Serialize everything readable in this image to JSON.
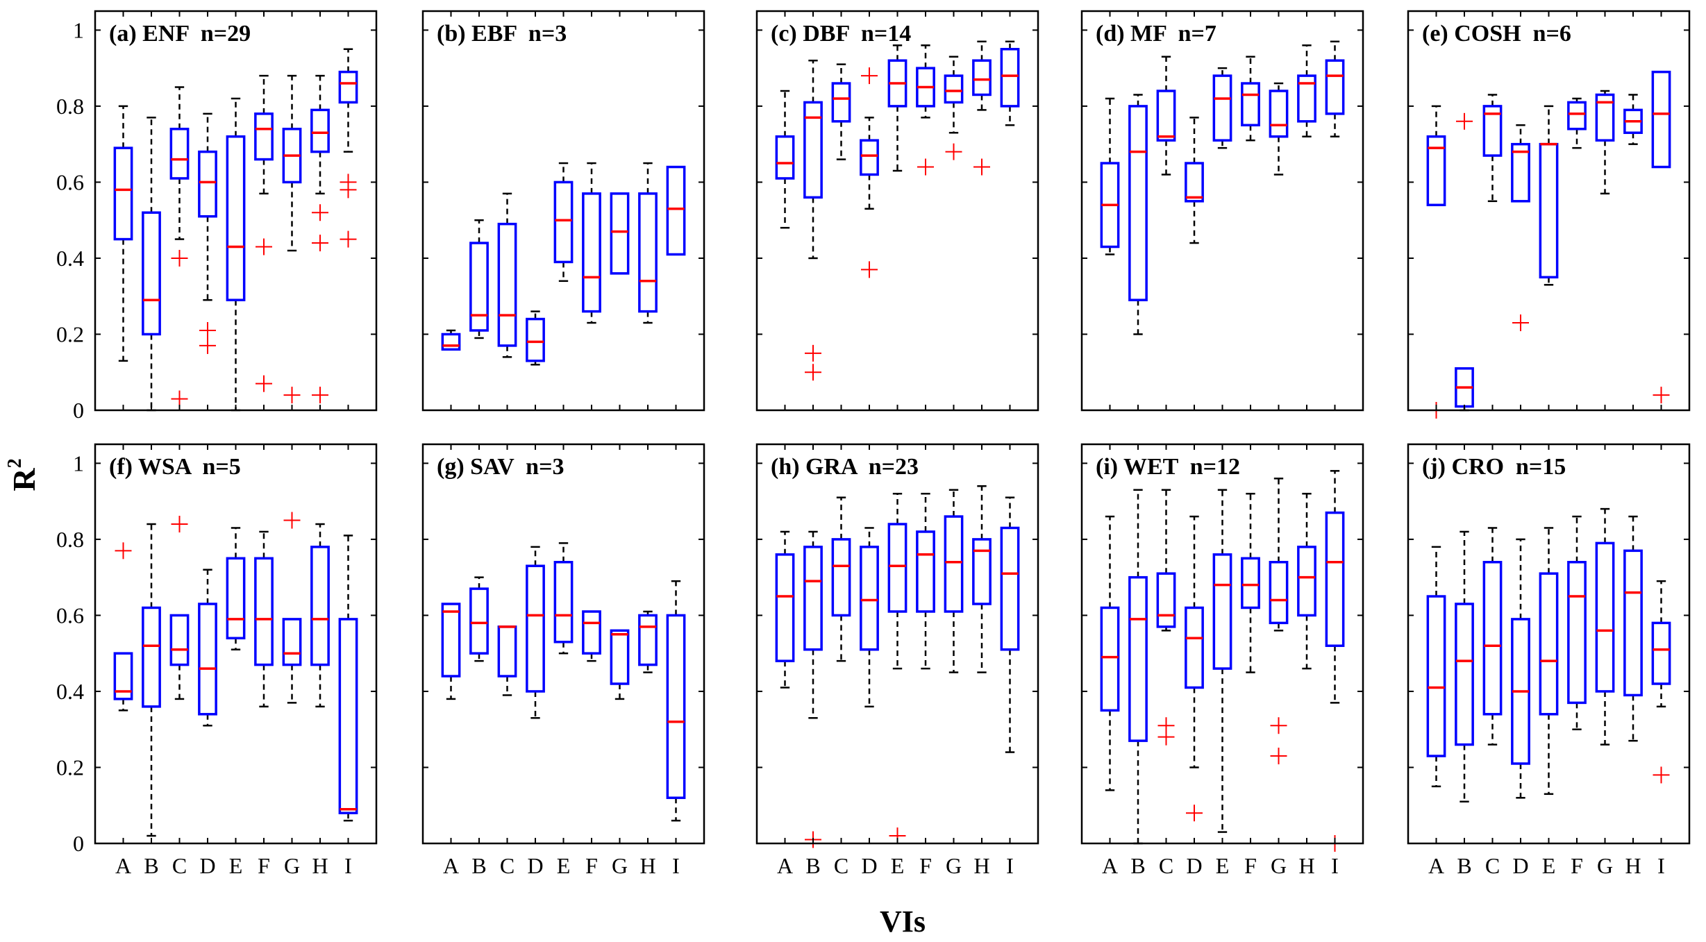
{
  "figure": {
    "ylabel": "R",
    "ylabel_sup": "2",
    "xlabel": "VIs"
  },
  "chart_data": {
    "type": "box",
    "categories": [
      "A",
      "B",
      "C",
      "D",
      "E",
      "F",
      "G",
      "H",
      "I"
    ],
    "ylim": [
      0,
      1.05
    ],
    "yticks": [
      0,
      0.2,
      0.4,
      0.6,
      0.8,
      1
    ],
    "ytick_labels": [
      "0",
      "0.2",
      "0.4",
      "0.6",
      "0.8",
      "1"
    ],
    "colors": {
      "box": "#0000ff",
      "median": "#ff0000",
      "whisker": "#000000",
      "outlier": "#ff0000"
    },
    "panels": [
      {
        "title": "(a) ENF  n=29",
        "boxes": [
          {
            "cat": "A",
            "lw": 0.13,
            "q1": 0.45,
            "med": 0.58,
            "q3": 0.69,
            "uw": 0.8,
            "out": []
          },
          {
            "cat": "B",
            "lw": 0.0,
            "q1": 0.2,
            "med": 0.29,
            "q3": 0.52,
            "uw": 0.77,
            "out": []
          },
          {
            "cat": "C",
            "lw": 0.45,
            "q1": 0.61,
            "med": 0.66,
            "q3": 0.74,
            "uw": 0.85,
            "out": [
              0.4,
              0.03
            ]
          },
          {
            "cat": "D",
            "lw": 0.29,
            "q1": 0.51,
            "med": 0.6,
            "q3": 0.68,
            "uw": 0.78,
            "out": [
              0.21,
              0.17
            ]
          },
          {
            "cat": "E",
            "lw": 0.0,
            "q1": 0.29,
            "med": 0.43,
            "q3": 0.72,
            "uw": 0.82,
            "out": []
          },
          {
            "cat": "F",
            "lw": 0.57,
            "q1": 0.66,
            "med": 0.74,
            "q3": 0.78,
            "uw": 0.88,
            "out": [
              0.43,
              0.07
            ]
          },
          {
            "cat": "G",
            "lw": 0.42,
            "q1": 0.6,
            "med": 0.67,
            "q3": 0.74,
            "uw": 0.88,
            "out": [
              0.04
            ]
          },
          {
            "cat": "H",
            "lw": 0.57,
            "q1": 0.68,
            "med": 0.73,
            "q3": 0.79,
            "uw": 0.88,
            "out": [
              0.52,
              0.44,
              0.04
            ]
          },
          {
            "cat": "I",
            "lw": 0.68,
            "q1": 0.81,
            "med": 0.86,
            "q3": 0.89,
            "uw": 0.95,
            "out": [
              0.6,
              0.58,
              0.45
            ]
          }
        ]
      },
      {
        "title": "(b) EBF  n=3",
        "boxes": [
          {
            "cat": "A",
            "lw": 0.16,
            "q1": 0.16,
            "med": 0.17,
            "q3": 0.2,
            "uw": 0.21,
            "out": []
          },
          {
            "cat": "B",
            "lw": 0.19,
            "q1": 0.21,
            "med": 0.25,
            "q3": 0.44,
            "uw": 0.5,
            "out": []
          },
          {
            "cat": "C",
            "lw": 0.14,
            "q1": 0.17,
            "med": 0.25,
            "q3": 0.49,
            "uw": 0.57,
            "out": []
          },
          {
            "cat": "D",
            "lw": 0.12,
            "q1": 0.13,
            "med": 0.18,
            "q3": 0.24,
            "uw": 0.26,
            "out": []
          },
          {
            "cat": "E",
            "lw": 0.34,
            "q1": 0.39,
            "med": 0.5,
            "q3": 0.6,
            "uw": 0.65,
            "out": []
          },
          {
            "cat": "F",
            "lw": 0.23,
            "q1": 0.26,
            "med": 0.35,
            "q3": 0.57,
            "uw": 0.65,
            "out": []
          },
          {
            "cat": "G",
            "lw": 0.36,
            "q1": 0.36,
            "med": 0.47,
            "q3": 0.57,
            "uw": 0.57,
            "out": []
          },
          {
            "cat": "H",
            "lw": 0.23,
            "q1": 0.26,
            "med": 0.34,
            "q3": 0.57,
            "uw": 0.65,
            "out": []
          },
          {
            "cat": "I",
            "lw": 0.41,
            "q1": 0.41,
            "med": 0.53,
            "q3": 0.64,
            "uw": 0.64,
            "out": []
          }
        ]
      },
      {
        "title": "(c) DBF  n=14",
        "boxes": [
          {
            "cat": "A",
            "lw": 0.48,
            "q1": 0.61,
            "med": 0.65,
            "q3": 0.72,
            "uw": 0.84,
            "out": []
          },
          {
            "cat": "B",
            "lw": 0.4,
            "q1": 0.56,
            "med": 0.77,
            "q3": 0.81,
            "uw": 0.92,
            "out": [
              0.15,
              0.1
            ]
          },
          {
            "cat": "C",
            "lw": 0.66,
            "q1": 0.76,
            "med": 0.82,
            "q3": 0.86,
            "uw": 0.91,
            "out": []
          },
          {
            "cat": "D",
            "lw": 0.53,
            "q1": 0.62,
            "med": 0.67,
            "q3": 0.71,
            "uw": 0.77,
            "out": [
              0.88,
              0.37
            ]
          },
          {
            "cat": "E",
            "lw": 0.63,
            "q1": 0.8,
            "med": 0.86,
            "q3": 0.92,
            "uw": 0.96,
            "out": []
          },
          {
            "cat": "F",
            "lw": 0.77,
            "q1": 0.8,
            "med": 0.85,
            "q3": 0.9,
            "uw": 0.96,
            "out": [
              0.64
            ]
          },
          {
            "cat": "G",
            "lw": 0.73,
            "q1": 0.81,
            "med": 0.84,
            "q3": 0.88,
            "uw": 0.93,
            "out": [
              0.68
            ]
          },
          {
            "cat": "H",
            "lw": 0.79,
            "q1": 0.83,
            "med": 0.87,
            "q3": 0.92,
            "uw": 0.97,
            "out": [
              0.64
            ]
          },
          {
            "cat": "I",
            "lw": 0.75,
            "q1": 0.8,
            "med": 0.88,
            "q3": 0.95,
            "uw": 0.97,
            "out": []
          }
        ]
      },
      {
        "title": "(d) MF  n=7",
        "boxes": [
          {
            "cat": "A",
            "lw": 0.41,
            "q1": 0.43,
            "med": 0.54,
            "q3": 0.65,
            "uw": 0.82,
            "out": []
          },
          {
            "cat": "B",
            "lw": 0.2,
            "q1": 0.29,
            "med": 0.68,
            "q3": 0.8,
            "uw": 0.83,
            "out": []
          },
          {
            "cat": "C",
            "lw": 0.62,
            "q1": 0.71,
            "med": 0.72,
            "q3": 0.84,
            "uw": 0.93,
            "out": []
          },
          {
            "cat": "D",
            "lw": 0.44,
            "q1": 0.55,
            "med": 0.56,
            "q3": 0.65,
            "uw": 0.77,
            "out": []
          },
          {
            "cat": "E",
            "lw": 0.69,
            "q1": 0.71,
            "med": 0.82,
            "q3": 0.88,
            "uw": 0.9,
            "out": []
          },
          {
            "cat": "F",
            "lw": 0.71,
            "q1": 0.75,
            "med": 0.83,
            "q3": 0.86,
            "uw": 0.93,
            "out": []
          },
          {
            "cat": "G",
            "lw": 0.62,
            "q1": 0.72,
            "med": 0.75,
            "q3": 0.84,
            "uw": 0.86,
            "out": []
          },
          {
            "cat": "H",
            "lw": 0.72,
            "q1": 0.76,
            "med": 0.86,
            "q3": 0.88,
            "uw": 0.96,
            "out": []
          },
          {
            "cat": "I",
            "lw": 0.72,
            "q1": 0.78,
            "med": 0.88,
            "q3": 0.92,
            "uw": 0.97,
            "out": []
          }
        ]
      },
      {
        "title": "(e) COSH  n=6",
        "boxes": [
          {
            "cat": "A",
            "lw": 0.54,
            "q1": 0.54,
            "med": 0.69,
            "q3": 0.72,
            "uw": 0.8,
            "out": [
              0.0
            ]
          },
          {
            "cat": "B",
            "lw": 0.0,
            "q1": 0.01,
            "med": 0.06,
            "q3": 0.11,
            "uw": 0.11,
            "out": [
              0.76
            ]
          },
          {
            "cat": "C",
            "lw": 0.55,
            "q1": 0.67,
            "med": 0.78,
            "q3": 0.8,
            "uw": 0.83,
            "out": []
          },
          {
            "cat": "D",
            "lw": 0.55,
            "q1": 0.55,
            "med": 0.68,
            "q3": 0.7,
            "uw": 0.75,
            "out": [
              0.23
            ]
          },
          {
            "cat": "E",
            "lw": 0.33,
            "q1": 0.35,
            "med": 0.7,
            "q3": 0.7,
            "uw": 0.8,
            "out": []
          },
          {
            "cat": "F",
            "lw": 0.69,
            "q1": 0.74,
            "med": 0.78,
            "q3": 0.81,
            "uw": 0.82,
            "out": []
          },
          {
            "cat": "G",
            "lw": 0.57,
            "q1": 0.71,
            "med": 0.81,
            "q3": 0.83,
            "uw": 0.84,
            "out": []
          },
          {
            "cat": "H",
            "lw": 0.7,
            "q1": 0.73,
            "med": 0.76,
            "q3": 0.79,
            "uw": 0.83,
            "out": []
          },
          {
            "cat": "I",
            "lw": 0.64,
            "q1": 0.64,
            "med": 0.78,
            "q3": 0.89,
            "uw": 0.89,
            "out": [
              0.04
            ]
          }
        ]
      },
      {
        "title": "(f) WSA  n=5",
        "boxes": [
          {
            "cat": "A",
            "lw": 0.35,
            "q1": 0.38,
            "med": 0.4,
            "q3": 0.5,
            "uw": 0.5,
            "out": [
              0.77
            ]
          },
          {
            "cat": "B",
            "lw": 0.02,
            "q1": 0.36,
            "med": 0.52,
            "q3": 0.62,
            "uw": 0.84,
            "out": []
          },
          {
            "cat": "C",
            "lw": 0.38,
            "q1": 0.47,
            "med": 0.51,
            "q3": 0.6,
            "uw": 0.6,
            "out": [
              0.84
            ]
          },
          {
            "cat": "D",
            "lw": 0.31,
            "q1": 0.34,
            "med": 0.46,
            "q3": 0.63,
            "uw": 0.72,
            "out": []
          },
          {
            "cat": "E",
            "lw": 0.51,
            "q1": 0.54,
            "med": 0.59,
            "q3": 0.75,
            "uw": 0.83,
            "out": []
          },
          {
            "cat": "F",
            "lw": 0.36,
            "q1": 0.47,
            "med": 0.59,
            "q3": 0.75,
            "uw": 0.82,
            "out": []
          },
          {
            "cat": "G",
            "lw": 0.37,
            "q1": 0.47,
            "med": 0.5,
            "q3": 0.59,
            "uw": 0.59,
            "out": [
              0.85
            ]
          },
          {
            "cat": "H",
            "lw": 0.36,
            "q1": 0.47,
            "med": 0.59,
            "q3": 0.78,
            "uw": 0.84,
            "out": []
          },
          {
            "cat": "I",
            "lw": 0.06,
            "q1": 0.08,
            "med": 0.09,
            "q3": 0.59,
            "uw": 0.81,
            "out": []
          }
        ]
      },
      {
        "title": "(g) SAV  n=3",
        "boxes": [
          {
            "cat": "A",
            "lw": 0.38,
            "q1": 0.44,
            "med": 0.61,
            "q3": 0.63,
            "uw": 0.63,
            "out": []
          },
          {
            "cat": "B",
            "lw": 0.48,
            "q1": 0.5,
            "med": 0.58,
            "q3": 0.67,
            "uw": 0.7,
            "out": []
          },
          {
            "cat": "C",
            "lw": 0.39,
            "q1": 0.44,
            "med": 0.57,
            "q3": 0.57,
            "uw": 0.57,
            "out": []
          },
          {
            "cat": "D",
            "lw": 0.33,
            "q1": 0.4,
            "med": 0.6,
            "q3": 0.73,
            "uw": 0.78,
            "out": []
          },
          {
            "cat": "E",
            "lw": 0.5,
            "q1": 0.53,
            "med": 0.6,
            "q3": 0.74,
            "uw": 0.79,
            "out": []
          },
          {
            "cat": "F",
            "lw": 0.48,
            "q1": 0.5,
            "med": 0.58,
            "q3": 0.61,
            "uw": 0.61,
            "out": []
          },
          {
            "cat": "G",
            "lw": 0.38,
            "q1": 0.42,
            "med": 0.55,
            "q3": 0.56,
            "uw": 0.56,
            "out": []
          },
          {
            "cat": "H",
            "lw": 0.45,
            "q1": 0.47,
            "med": 0.57,
            "q3": 0.6,
            "uw": 0.61,
            "out": []
          },
          {
            "cat": "I",
            "lw": 0.06,
            "q1": 0.12,
            "med": 0.32,
            "q3": 0.6,
            "uw": 0.69,
            "out": []
          }
        ]
      },
      {
        "title": "(h) GRA  n=23",
        "boxes": [
          {
            "cat": "A",
            "lw": 0.41,
            "q1": 0.48,
            "med": 0.65,
            "q3": 0.76,
            "uw": 0.82,
            "out": []
          },
          {
            "cat": "B",
            "lw": 0.33,
            "q1": 0.51,
            "med": 0.69,
            "q3": 0.78,
            "uw": 0.82,
            "out": [
              0.01
            ]
          },
          {
            "cat": "C",
            "lw": 0.48,
            "q1": 0.6,
            "med": 0.73,
            "q3": 0.8,
            "uw": 0.91,
            "out": []
          },
          {
            "cat": "D",
            "lw": 0.36,
            "q1": 0.51,
            "med": 0.64,
            "q3": 0.78,
            "uw": 0.83,
            "out": []
          },
          {
            "cat": "E",
            "lw": 0.46,
            "q1": 0.61,
            "med": 0.73,
            "q3": 0.84,
            "uw": 0.92,
            "out": [
              0.02
            ]
          },
          {
            "cat": "F",
            "lw": 0.46,
            "q1": 0.61,
            "med": 0.76,
            "q3": 0.82,
            "uw": 0.92,
            "out": []
          },
          {
            "cat": "G",
            "lw": 0.45,
            "q1": 0.61,
            "med": 0.74,
            "q3": 0.86,
            "uw": 0.93,
            "out": []
          },
          {
            "cat": "H",
            "lw": 0.45,
            "q1": 0.63,
            "med": 0.77,
            "q3": 0.8,
            "uw": 0.94,
            "out": []
          },
          {
            "cat": "I",
            "lw": 0.24,
            "q1": 0.51,
            "med": 0.71,
            "q3": 0.83,
            "uw": 0.91,
            "out": []
          }
        ]
      },
      {
        "title": "(i) WET  n=12",
        "boxes": [
          {
            "cat": "A",
            "lw": 0.14,
            "q1": 0.35,
            "med": 0.49,
            "q3": 0.62,
            "uw": 0.86,
            "out": []
          },
          {
            "cat": "B",
            "lw": 0.0,
            "q1": 0.27,
            "med": 0.59,
            "q3": 0.7,
            "uw": 0.93,
            "out": []
          },
          {
            "cat": "C",
            "lw": 0.56,
            "q1": 0.57,
            "med": 0.6,
            "q3": 0.71,
            "uw": 0.93,
            "out": [
              0.31,
              0.28
            ]
          },
          {
            "cat": "D",
            "lw": 0.2,
            "q1": 0.41,
            "med": 0.54,
            "q3": 0.62,
            "uw": 0.86,
            "out": [
              0.08
            ]
          },
          {
            "cat": "E",
            "lw": 0.03,
            "q1": 0.46,
            "med": 0.68,
            "q3": 0.76,
            "uw": 0.93,
            "out": []
          },
          {
            "cat": "F",
            "lw": 0.45,
            "q1": 0.62,
            "med": 0.68,
            "q3": 0.75,
            "uw": 0.92,
            "out": []
          },
          {
            "cat": "G",
            "lw": 0.56,
            "q1": 0.58,
            "med": 0.64,
            "q3": 0.74,
            "uw": 0.96,
            "out": [
              0.31,
              0.23
            ]
          },
          {
            "cat": "H",
            "lw": 0.46,
            "q1": 0.6,
            "med": 0.7,
            "q3": 0.78,
            "uw": 0.92,
            "out": []
          },
          {
            "cat": "I",
            "lw": 0.37,
            "q1": 0.52,
            "med": 0.74,
            "q3": 0.87,
            "uw": 0.98,
            "out": [
              0.0
            ]
          }
        ]
      },
      {
        "title": "(j) CRO  n=15",
        "boxes": [
          {
            "cat": "A",
            "lw": 0.15,
            "q1": 0.23,
            "med": 0.41,
            "q3": 0.65,
            "uw": 0.78,
            "out": []
          },
          {
            "cat": "B",
            "lw": 0.11,
            "q1": 0.26,
            "med": 0.48,
            "q3": 0.63,
            "uw": 0.82,
            "out": []
          },
          {
            "cat": "C",
            "lw": 0.26,
            "q1": 0.34,
            "med": 0.52,
            "q3": 0.74,
            "uw": 0.83,
            "out": []
          },
          {
            "cat": "D",
            "lw": 0.12,
            "q1": 0.21,
            "med": 0.4,
            "q3": 0.59,
            "uw": 0.8,
            "out": []
          },
          {
            "cat": "E",
            "lw": 0.13,
            "q1": 0.34,
            "med": 0.48,
            "q3": 0.71,
            "uw": 0.83,
            "out": []
          },
          {
            "cat": "F",
            "lw": 0.3,
            "q1": 0.37,
            "med": 0.65,
            "q3": 0.74,
            "uw": 0.86,
            "out": []
          },
          {
            "cat": "G",
            "lw": 0.26,
            "q1": 0.4,
            "med": 0.56,
            "q3": 0.79,
            "uw": 0.88,
            "out": []
          },
          {
            "cat": "H",
            "lw": 0.27,
            "q1": 0.39,
            "med": 0.66,
            "q3": 0.77,
            "uw": 0.86,
            "out": []
          },
          {
            "cat": "I",
            "lw": 0.36,
            "q1": 0.42,
            "med": 0.51,
            "q3": 0.58,
            "uw": 0.69,
            "out": [
              0.18
            ]
          }
        ]
      }
    ]
  }
}
